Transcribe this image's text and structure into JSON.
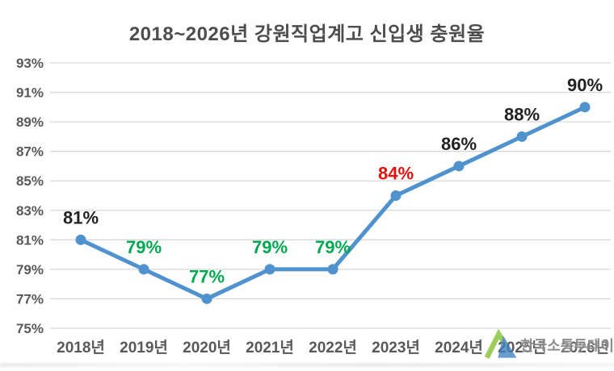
{
  "chart_data": {
    "type": "line",
    "title": "2018~2026년 강원직업계고 신입생 충원율",
    "categories": [
      "2018년",
      "2019년",
      "2020년",
      "2021년",
      "2022년",
      "2023년",
      "2024년",
      "2025년",
      "2026년"
    ],
    "values": [
      81,
      79,
      77,
      79,
      79,
      84,
      86,
      88,
      90
    ],
    "data_labels": [
      "81%",
      "79%",
      "77%",
      "79%",
      "79%",
      "84%",
      "86%",
      "88%",
      "90%"
    ],
    "label_colors": [
      "#222222",
      "#00A94F",
      "#00A94F",
      "#00A94F",
      "#00A94F",
      "#E8100C",
      "#222222",
      "#222222",
      "#222222"
    ],
    "xlabel": "",
    "ylabel": "",
    "ylim": [
      75,
      93
    ],
    "ytick_step": 2,
    "ytick_suffix": "%",
    "grid": "horizontal-only",
    "legend": "none",
    "line_color": "#4F92CE",
    "marker_color": "#4F92CE",
    "gridline_color": "#D9D9D9",
    "axis_label_color": "#595959",
    "title_color": "#4D4D4D"
  },
  "watermark": {
    "text": "한국소통투데이",
    "logo": "mountain-logo",
    "logo_green": "#8DC63F",
    "logo_blue": "#3C7EBF"
  }
}
